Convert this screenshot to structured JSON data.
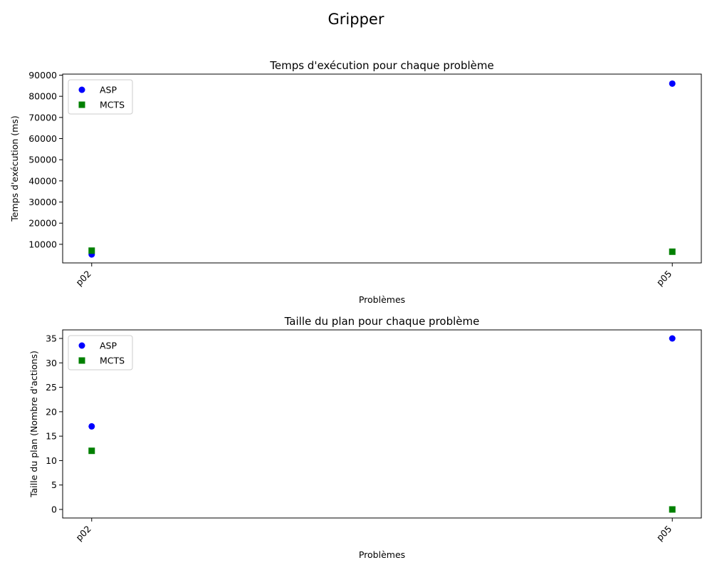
{
  "figure": {
    "suptitle": "Gripper"
  },
  "chart_data": [
    {
      "type": "scatter",
      "title": "Temps d'exécution pour chaque problème",
      "xlabel": "Problèmes",
      "ylabel": "Temps d'exécution (ms)",
      "categories": [
        "p02",
        "p05"
      ],
      "ylim": [
        1200,
        90500
      ],
      "yticks": [
        10000,
        20000,
        30000,
        40000,
        50000,
        60000,
        70000,
        80000,
        90000
      ],
      "legend": "top-left",
      "grid": false,
      "series": [
        {
          "name": "ASP",
          "values": [
            5200,
            86000
          ],
          "color": "#0000ff",
          "marker": "circle"
        },
        {
          "name": "MCTS",
          "values": [
            7000,
            6500
          ],
          "color": "#008000",
          "marker": "square"
        }
      ]
    },
    {
      "type": "scatter",
      "title": "Taille du plan pour chaque problème",
      "xlabel": "Problèmes",
      "ylabel": "Taille du plan (Nombre d'actions)",
      "categories": [
        "p02",
        "p05"
      ],
      "ylim": [
        -1.75,
        36.75
      ],
      "yticks": [
        0,
        5,
        10,
        15,
        20,
        25,
        30,
        35
      ],
      "legend": "top-left",
      "grid": false,
      "series": [
        {
          "name": "ASP",
          "values": [
            17,
            35
          ],
          "color": "#0000ff",
          "marker": "circle"
        },
        {
          "name": "MCTS",
          "values": [
            12,
            0
          ],
          "color": "#008000",
          "marker": "square"
        }
      ]
    }
  ]
}
